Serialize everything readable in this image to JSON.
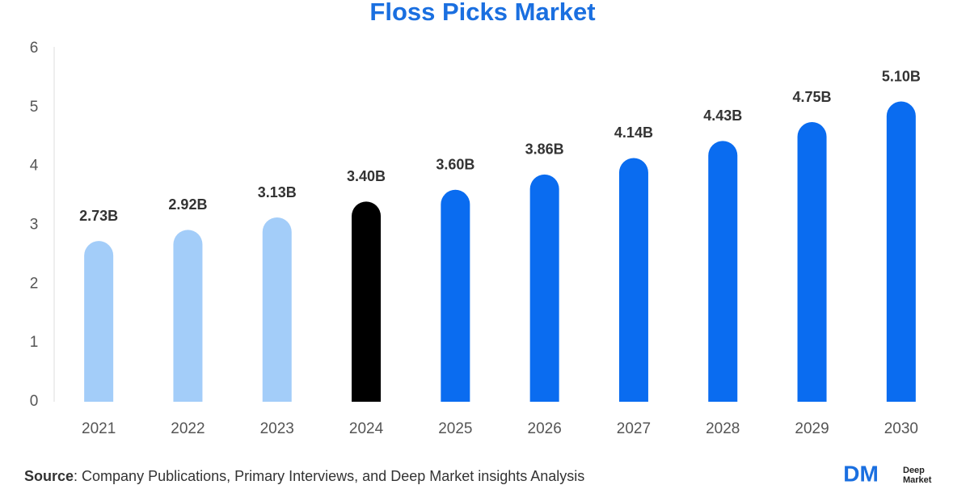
{
  "chart_data": {
    "type": "bar",
    "title": "Floss Picks Market",
    "categories": [
      "2021",
      "2022",
      "2023",
      "2024",
      "2025",
      "2026",
      "2027",
      "2028",
      "2029",
      "2030"
    ],
    "values": [
      2.73,
      2.92,
      3.13,
      3.4,
      3.6,
      3.86,
      4.14,
      4.43,
      4.75,
      5.1
    ],
    "value_labels": [
      "2.73B",
      "2.92B",
      "3.13B",
      "3.40B",
      "3.60B",
      "3.86B",
      "4.14B",
      "4.43B",
      "4.75B",
      "5.10B"
    ],
    "colors": [
      "#a3cdf9",
      "#a3cdf9",
      "#a3cdf9",
      "#000000",
      "#0a6cf0",
      "#0a6cf0",
      "#0a6cf0",
      "#0a6cf0",
      "#0a6cf0",
      "#0a6cf0"
    ],
    "ylim": [
      0,
      6
    ],
    "yticks": [
      0,
      1,
      2,
      3,
      4,
      5,
      6
    ],
    "grid": false
  },
  "source_label": "Source",
  "source": ": Company Publications, Primary Interviews, and Deep Market insights Analysis",
  "logo": {
    "mark": "DM",
    "line1": "Deep",
    "line2": "Market"
  }
}
